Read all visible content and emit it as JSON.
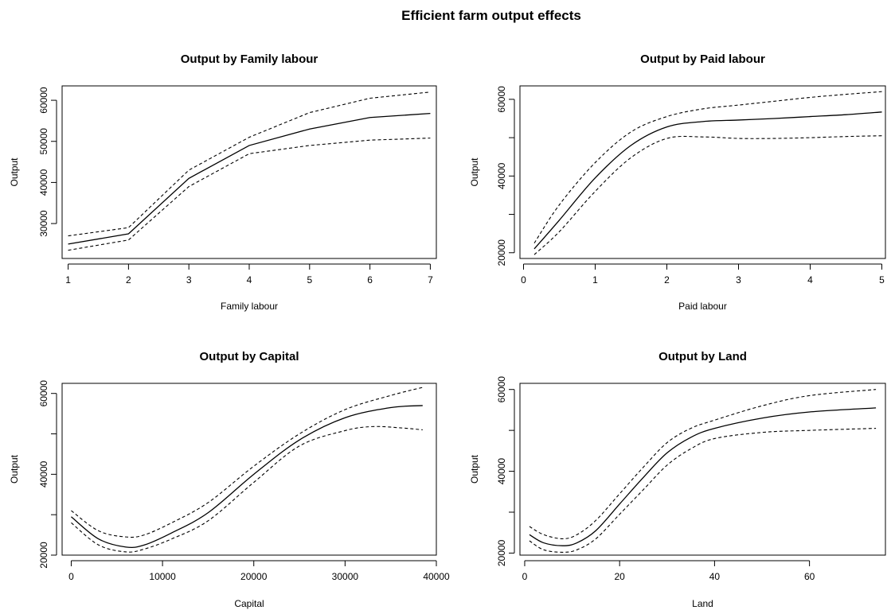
{
  "title": "Efficient farm output effects",
  "chart_data": [
    {
      "type": "line",
      "title": "Output by Family labour",
      "xlabel": "Family labour",
      "ylabel": "Output",
      "xlim": [
        0.9,
        7.1
      ],
      "ylim": [
        21500,
        63500
      ],
      "xticks": [
        1,
        2,
        3,
        4,
        5,
        6,
        7
      ],
      "yticks": [
        30000,
        40000,
        50000,
        60000
      ],
      "series": [
        {
          "style": "solid",
          "x": [
            1,
            2,
            3,
            4,
            5,
            6,
            7
          ],
          "y": [
            25000,
            27500,
            41000,
            49000,
            53000,
            55800,
            56800
          ]
        },
        {
          "style": "dashed",
          "x": [
            1,
            2,
            3,
            4,
            5,
            6,
            7
          ],
          "y": [
            27000,
            29000,
            43000,
            51000,
            57000,
            60500,
            62000
          ]
        },
        {
          "style": "dashed",
          "x": [
            1,
            2,
            3,
            4,
            5,
            6,
            7
          ],
          "y": [
            23500,
            26000,
            39000,
            47000,
            49000,
            50300,
            50800
          ]
        }
      ]
    },
    {
      "type": "line",
      "title": "Output by Paid labour",
      "xlabel": "Paid labour",
      "ylabel": "Output",
      "xlim": [
        -0.05,
        5.05
      ],
      "ylim": [
        18500,
        63500
      ],
      "xticks": [
        0,
        1,
        2,
        3,
        4,
        5
      ],
      "yticks": [
        20000,
        30000,
        40000,
        50000,
        60000
      ],
      "ytick_labels": [
        "20000",
        "",
        "40000",
        "",
        "60000"
      ],
      "series": [
        {
          "style": "solid",
          "x": [
            0.15,
            0.5,
            1,
            1.5,
            2,
            2.5,
            3,
            3.5,
            4,
            4.5,
            5
          ],
          "y": [
            21000,
            28500,
            39500,
            48000,
            52800,
            54200,
            54600,
            55000,
            55500,
            56000,
            56700
          ]
        },
        {
          "style": "dashed",
          "x": [
            0.15,
            0.5,
            1,
            1.5,
            2,
            2.5,
            3,
            3.5,
            4,
            4.5,
            5
          ],
          "y": [
            22500,
            32500,
            43500,
            51500,
            55500,
            57500,
            58500,
            59500,
            60500,
            61300,
            62000
          ]
        },
        {
          "style": "dashed",
          "x": [
            0.15,
            0.5,
            1,
            1.5,
            2,
            2.5,
            3,
            3.5,
            4,
            4.5,
            5
          ],
          "y": [
            19500,
            25500,
            36000,
            44800,
            49800,
            50200,
            49800,
            49800,
            50000,
            50300,
            50500
          ]
        }
      ]
    },
    {
      "type": "line",
      "title": "Output by Capital",
      "xlabel": "Capital",
      "ylabel": "Output",
      "xlim": [
        -1000,
        40000
      ],
      "ylim": [
        20000,
        62500
      ],
      "xticks": [
        0,
        10000,
        20000,
        30000,
        40000
      ],
      "yticks": [
        20000,
        30000,
        40000,
        50000,
        60000
      ],
      "ytick_labels": [
        "20000",
        "",
        "40000",
        "",
        "60000"
      ],
      "series": [
        {
          "style": "solid",
          "x": [
            0,
            3000,
            6000,
            8000,
            11000,
            15000,
            20000,
            25000,
            30000,
            35000,
            38500
          ],
          "y": [
            29500,
            24000,
            22000,
            22500,
            25500,
            30500,
            40000,
            48500,
            54000,
            56500,
            57000
          ]
        },
        {
          "style": "dashed",
          "x": [
            0,
            3000,
            6000,
            8000,
            11000,
            15000,
            20000,
            25000,
            30000,
            35000,
            38500
          ],
          "y": [
            31000,
            26000,
            24500,
            25000,
            28000,
            33000,
            42000,
            50000,
            56000,
            59500,
            61500
          ]
        },
        {
          "style": "dashed",
          "x": [
            0,
            3000,
            6000,
            8000,
            11000,
            15000,
            20000,
            25000,
            30000,
            33000,
            36000,
            38500
          ],
          "y": [
            28000,
            22500,
            20800,
            21500,
            24000,
            28500,
            38000,
            47000,
            50800,
            51800,
            51500,
            51000
          ]
        }
      ]
    },
    {
      "type": "line",
      "title": "Output by Land",
      "xlabel": "Land",
      "ylabel": "Output",
      "xlim": [
        -1,
        76
      ],
      "ylim": [
        19500,
        61500
      ],
      "xticks": [
        0,
        20,
        40,
        60
      ],
      "yticks": [
        20000,
        30000,
        40000,
        50000,
        60000
      ],
      "ytick_labels": [
        "20000",
        "",
        "40000",
        "",
        "60000"
      ],
      "series": [
        {
          "style": "solid",
          "x": [
            1,
            4,
            8,
            11,
            15,
            20,
            25,
            30,
            35,
            40,
            50,
            60,
            74
          ],
          "y": [
            24500,
            22500,
            21800,
            22500,
            25500,
            32000,
            38500,
            44500,
            48300,
            50500,
            53000,
            54500,
            55500
          ]
        },
        {
          "style": "dashed",
          "x": [
            1,
            4,
            8,
            11,
            15,
            20,
            25,
            30,
            35,
            40,
            50,
            60,
            74
          ],
          "y": [
            26500,
            24500,
            23500,
            24500,
            28000,
            34500,
            41000,
            47000,
            50500,
            52500,
            56000,
            58500,
            60000
          ]
        },
        {
          "style": "dashed",
          "x": [
            1,
            4,
            8,
            11,
            15,
            20,
            25,
            30,
            35,
            40,
            50,
            60,
            74
          ],
          "y": [
            23000,
            20800,
            20200,
            20800,
            23500,
            29500,
            35500,
            41500,
            45500,
            48000,
            49500,
            50000,
            50500
          ]
        }
      ]
    }
  ]
}
